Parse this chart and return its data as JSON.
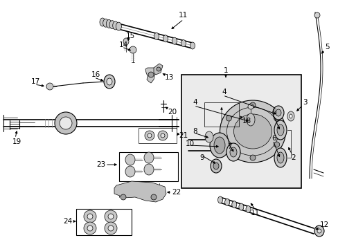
{
  "bg_color": "#ffffff",
  "lc": "#000000",
  "gray1": "#d0d0d0",
  "gray2": "#b0b0b0",
  "gray3": "#888888",
  "inset_bg": "#ebebeb",
  "figsize": [
    4.89,
    3.6
  ],
  "dpi": 100,
  "fs": 7.5
}
